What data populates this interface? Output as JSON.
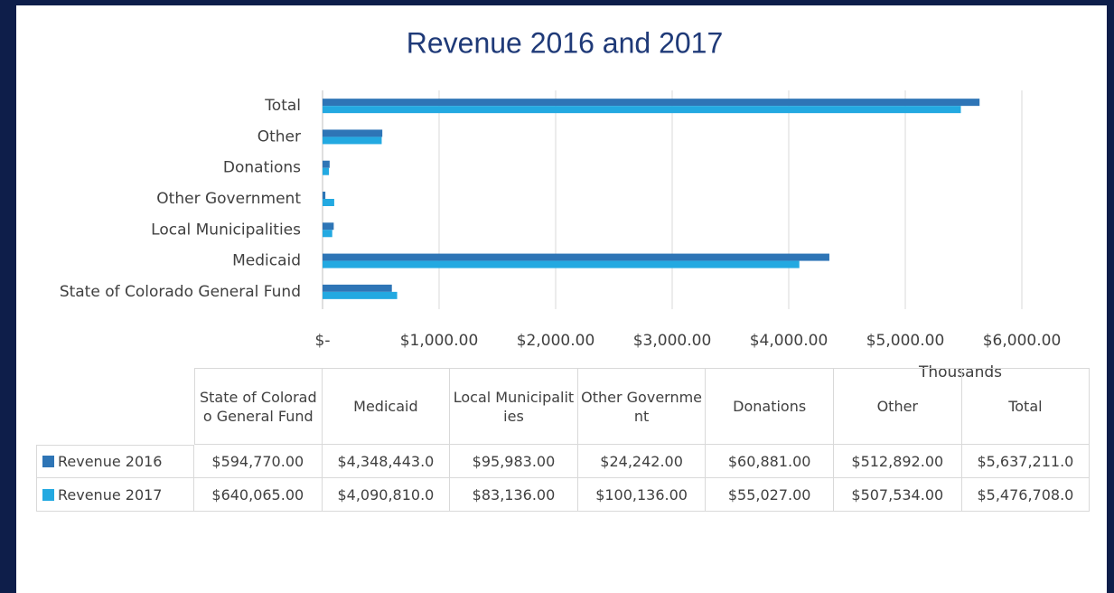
{
  "chart_data": {
    "type": "bar",
    "orientation": "horizontal",
    "title": "Revenue 2016 and 2017",
    "x_label": "Thousands",
    "categories": [
      "State of Colorado General Fund",
      "Medicaid",
      "Local Municipalities",
      "Other Government",
      "Donations",
      "Other",
      "Total"
    ],
    "series": [
      {
        "name": "Revenue 2016",
        "color": "#2e75b6",
        "values": [
          594.77,
          4348.443,
          95.983,
          24.242,
          60.881,
          512.892,
          5637.211
        ],
        "value_labels": [
          "$594,770.00",
          "$4,348,443.0",
          "$95,983.00",
          "$24,242.00",
          "$60,881.00",
          "$512,892.00",
          "$5,637,211.0"
        ]
      },
      {
        "name": "Revenue 2017",
        "color": "#23a9e1",
        "values": [
          640.065,
          4090.81,
          83.136,
          100.136,
          55.027,
          507.534,
          5476.708
        ],
        "value_labels": [
          "$640,065.00",
          "$4,090,810.0",
          "$83,136.00",
          "$100,136.00",
          "$55,027.00",
          "$507,534.00",
          "$5,476,708.0"
        ]
      }
    ],
    "xlim": [
      0,
      6000
    ],
    "xticks": [
      {
        "value": 0,
        "label": "$-"
      },
      {
        "value": 1000,
        "label": "$1,000.00"
      },
      {
        "value": 2000,
        "label": "$2,000.00"
      },
      {
        "value": 3000,
        "label": "$3,000.00"
      },
      {
        "value": 4000,
        "label": "$4,000.00"
      },
      {
        "value": 5000,
        "label": "$5,000.00"
      },
      {
        "value": 6000,
        "label": "$6,000.00"
      }
    ],
    "grid": true,
    "data_table": true
  }
}
